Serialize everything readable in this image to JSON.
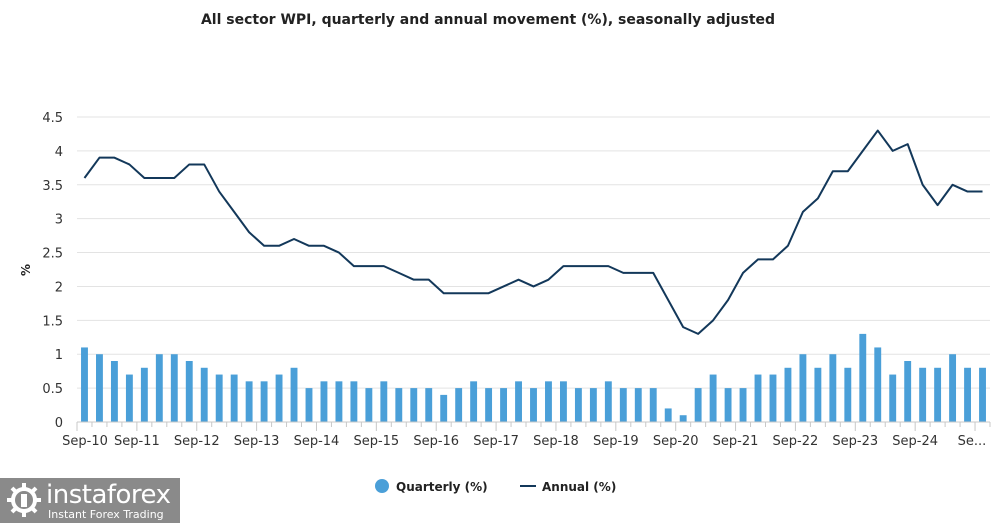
{
  "chart_data": {
    "type": "bar+line",
    "title": "All sector WPI, quarterly and annual movement (%), seasonally adjusted",
    "xlabel": "",
    "ylabel": "%",
    "ylim": [
      0,
      4.5
    ],
    "yticks": [
      0,
      0.5,
      1,
      1.5,
      2,
      2.5,
      3,
      3.5,
      4,
      4.5
    ],
    "ytick_labels": [
      "0",
      "0.5",
      "1",
      "1.5",
      "2",
      "2.5",
      "3",
      "3.5",
      "4",
      "4.5"
    ],
    "xtick_labels": [
      "Sep-10",
      "Sep-11",
      "Sep-12",
      "Sep-13",
      "Sep-14",
      "Sep-15",
      "Sep-16",
      "Sep-17",
      "Sep-18",
      "Sep-19",
      "Sep-20",
      "Sep-21",
      "Sep-22",
      "Sep-23",
      "Sep-24",
      "Se..."
    ],
    "xtick_every": 4,
    "grid": true,
    "legend_position": "bottom-center",
    "series": [
      {
        "name": "Quarterly (%)",
        "type": "bar",
        "color": "#4a9fd8",
        "values": [
          1.1,
          1.0,
          0.9,
          0.7,
          0.8,
          1.0,
          1.0,
          0.9,
          0.8,
          0.7,
          0.7,
          0.6,
          0.6,
          0.7,
          0.8,
          0.5,
          0.6,
          0.6,
          0.6,
          0.5,
          0.6,
          0.5,
          0.5,
          0.5,
          0.4,
          0.5,
          0.6,
          0.5,
          0.5,
          0.6,
          0.5,
          0.6,
          0.6,
          0.5,
          0.5,
          0.6,
          0.5,
          0.5,
          0.5,
          0.2,
          0.1,
          0.5,
          0.7,
          0.5,
          0.5,
          0.7,
          0.7,
          0.8,
          1.0,
          0.8,
          1.0,
          0.8,
          1.3,
          1.1,
          0.7,
          0.9,
          0.8,
          0.8,
          1.0,
          0.8,
          0.8
        ]
      },
      {
        "name": "Annual (%)",
        "type": "line",
        "color": "#13385a",
        "values": [
          3.6,
          3.9,
          3.9,
          3.8,
          3.6,
          3.6,
          3.6,
          3.8,
          3.8,
          3.4,
          3.1,
          2.8,
          2.6,
          2.6,
          2.7,
          2.6,
          2.6,
          2.5,
          2.3,
          2.3,
          2.3,
          2.2,
          2.1,
          2.1,
          1.9,
          1.9,
          1.9,
          1.9,
          2.0,
          2.1,
          2.0,
          2.1,
          2.3,
          2.3,
          2.3,
          2.3,
          2.2,
          2.2,
          2.2,
          1.8,
          1.4,
          1.3,
          1.5,
          1.8,
          2.2,
          2.4,
          2.4,
          2.6,
          3.1,
          3.3,
          3.7,
          3.7,
          4.0,
          4.3,
          4.0,
          4.1,
          3.5,
          3.2,
          3.5,
          3.4,
          3.4
        ]
      }
    ]
  },
  "watermark": {
    "brand": "instaforex",
    "tagline": "Instant Forex Trading"
  }
}
